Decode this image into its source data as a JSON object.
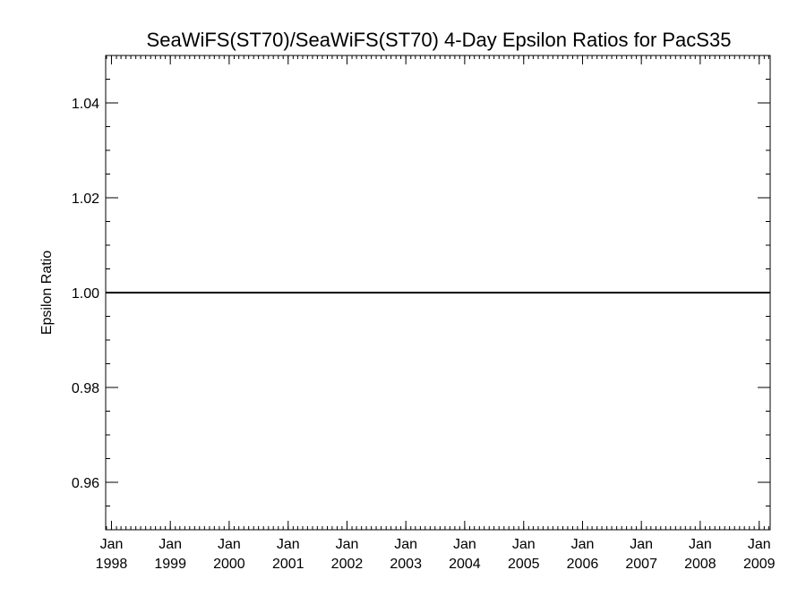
{
  "chart_data": {
    "type": "line",
    "title": "SeaWiFS(ST70)/SeaWiFS(ST70) 4-Day Epsilon Ratios for PacS35",
    "xlabel": "",
    "ylabel": "Epsilon Ratio",
    "xlim": [
      "1997-11-26",
      "2009-03-10"
    ],
    "ylim": [
      0.95,
      1.05
    ],
    "x_ticks": [
      {
        "month": "Jan",
        "year": "1998",
        "date": "1998-01-01"
      },
      {
        "month": "Jan",
        "year": "1999",
        "date": "1999-01-01"
      },
      {
        "month": "Jan",
        "year": "2000",
        "date": "2000-01-01"
      },
      {
        "month": "Jan",
        "year": "2001",
        "date": "2001-01-01"
      },
      {
        "month": "Jan",
        "year": "2002",
        "date": "2002-01-01"
      },
      {
        "month": "Jan",
        "year": "2003",
        "date": "2003-01-01"
      },
      {
        "month": "Jan",
        "year": "2004",
        "date": "2004-01-01"
      },
      {
        "month": "Jan",
        "year": "2005",
        "date": "2005-01-01"
      },
      {
        "month": "Jan",
        "year": "2006",
        "date": "2006-01-01"
      },
      {
        "month": "Jan",
        "year": "2007",
        "date": "2007-01-01"
      },
      {
        "month": "Jan",
        "year": "2008",
        "date": "2008-01-01"
      },
      {
        "month": "Jan",
        "year": "2009",
        "date": "2009-01-01"
      }
    ],
    "y_ticks": [
      "0.96",
      "0.98",
      "1.00",
      "1.02",
      "1.04"
    ],
    "y_minor_step": 0.005,
    "grid": false,
    "legend": "none",
    "series": [
      {
        "x": [
          "1997-11-26",
          "2009-03-10"
        ],
        "y": [
          1.0,
          1.0
        ],
        "color": "#000000"
      }
    ]
  }
}
